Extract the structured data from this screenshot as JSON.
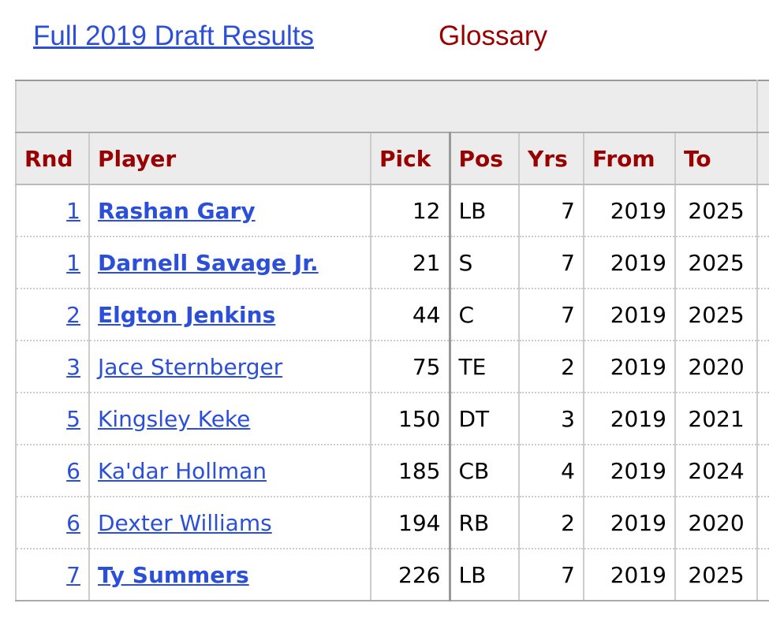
{
  "links": [
    "Full 2019 Draft Results",
    "Glossary"
  ],
  "table": {
    "columns": [
      "Rnd",
      "Player",
      "Pick",
      "Pos",
      "Yrs",
      "From",
      "To"
    ],
    "rows": [
      [
        1,
        "Rashan Gary",
        12,
        "LB",
        7,
        2019,
        2025
      ],
      [
        1,
        "Darnell Savage Jr.",
        21,
        "S",
        7,
        2019,
        2025
      ],
      [
        2,
        "Elgton Jenkins",
        44,
        "C",
        7,
        2019,
        2025
      ],
      [
        3,
        "Jace Sternberger",
        75,
        "TE",
        2,
        2019,
        2020
      ],
      [
        5,
        "Kingsley Keke",
        150,
        "DT",
        3,
        2019,
        2021
      ],
      [
        6,
        "Ka'dar Hollman",
        185,
        "CB",
        4,
        2019,
        2024
      ],
      [
        6,
        "Dexter Williams",
        194,
        "RB",
        2,
        2019,
        2020
      ],
      [
        7,
        "Ty Summers",
        226,
        "LB",
        7,
        2019,
        2025
      ]
    ]
  }
}
